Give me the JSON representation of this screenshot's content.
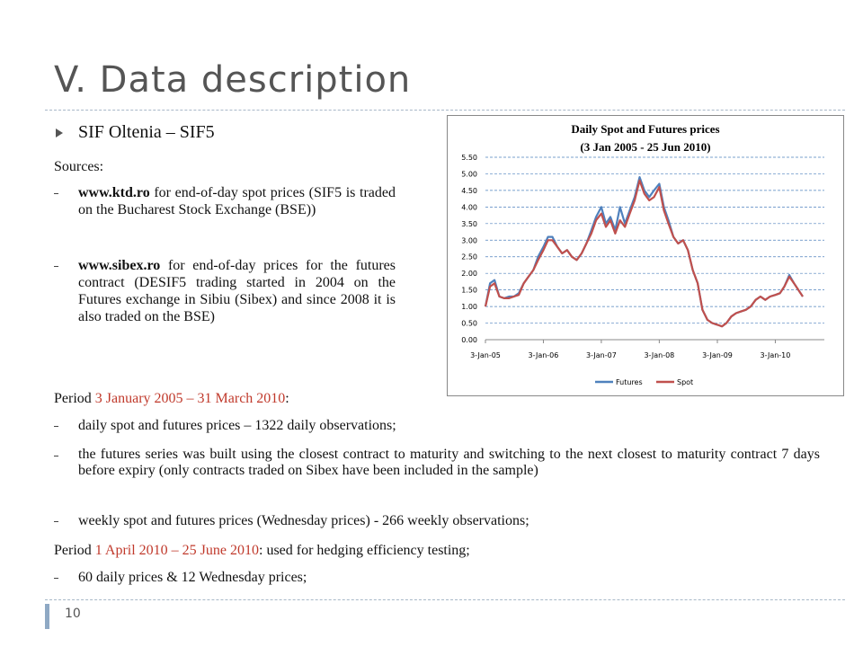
{
  "header": {
    "title": "V. Data description"
  },
  "section": {
    "heading": "SIF Oltenia – SIF5",
    "sources_label": "Sources:",
    "sources": [
      {
        "link": "www.ktd.ro",
        "text": " for end-of-day spot prices (SIF5 is traded on the Bucharest Stock Exchange (BSE))"
      },
      {
        "link": "www.sibex.ro",
        "text": " for end-of-day prices for the futures contract (DESIF5 trading started in 2004 on the Futures exchange in Sibiu (Sibex) and since 2008  it is also traded on the BSE)"
      }
    ]
  },
  "periods": [
    {
      "prefix": "Period ",
      "range": "3 January 2005 – 31 March 2010",
      "suffix": ":",
      "items": [
        "daily spot and futures prices – 1322 daily observations;",
        "the futures series was built using the closest contract to maturity and switching to the next closest to maturity contract 7 days before expiry (only contracts traded on Sibex have been included in the sample)",
        "weekly spot and futures prices (Wednesday prices) - 266 weekly observations;"
      ]
    },
    {
      "prefix": "Period ",
      "range": "1 April 2010 – 25 June 2010",
      "suffix": ": used for hedging efficiency testing;",
      "items": [
        "60 daily prices & 12 Wednesday prices;"
      ]
    }
  ],
  "footer": {
    "page": "10"
  },
  "chart_data": {
    "type": "line",
    "title": "Daily Spot and Futures prices",
    "subtitle": "(3 Jan 2005 - 25 Jun 2010)",
    "x": [
      "2005-01-03",
      "2005-02-01",
      "2005-03-01",
      "2005-04-01",
      "2005-05-01",
      "2005-06-01",
      "2005-07-01",
      "2005-08-01",
      "2005-09-01",
      "2005-10-01",
      "2005-11-01",
      "2005-12-01",
      "2006-01-03",
      "2006-02-01",
      "2006-03-01",
      "2006-04-01",
      "2006-05-01",
      "2006-06-01",
      "2006-07-01",
      "2006-08-01",
      "2006-09-01",
      "2006-10-01",
      "2006-11-01",
      "2006-12-01",
      "2007-01-03",
      "2007-02-01",
      "2007-03-01",
      "2007-04-01",
      "2007-05-01",
      "2007-06-01",
      "2007-07-01",
      "2007-08-01",
      "2007-09-01",
      "2007-10-01",
      "2007-11-01",
      "2007-12-01",
      "2008-01-03",
      "2008-02-01",
      "2008-03-01",
      "2008-04-01",
      "2008-05-01",
      "2008-06-01",
      "2008-07-01",
      "2008-08-01",
      "2008-09-01",
      "2008-10-01",
      "2008-11-01",
      "2008-12-01",
      "2009-01-03",
      "2009-02-01",
      "2009-03-01",
      "2009-04-01",
      "2009-05-01",
      "2009-06-01",
      "2009-07-01",
      "2009-08-01",
      "2009-09-01",
      "2009-10-01",
      "2009-11-01",
      "2009-12-01",
      "2010-01-03",
      "2010-02-01",
      "2010-03-01",
      "2010-04-01",
      "2010-05-01",
      "2010-06-25"
    ],
    "xlim": [
      "2005-01-03",
      "2010-06-25"
    ],
    "xticks": [
      {
        "value": "2005-01-03",
        "label": "3-Jan-05"
      },
      {
        "value": "2006-01-03",
        "label": "3-Jan-06"
      },
      {
        "value": "2007-01-03",
        "label": "3-Jan-07"
      },
      {
        "value": "2008-01-03",
        "label": "3-Jan-08"
      },
      {
        "value": "2009-01-03",
        "label": "3-Jan-09"
      },
      {
        "value": "2010-01-03",
        "label": "3-Jan-10"
      }
    ],
    "ylim": [
      0,
      5.5
    ],
    "yticks": [
      {
        "value": 0,
        "label": "0.00"
      },
      {
        "value": 0.5,
        "label": "0.50"
      },
      {
        "value": 1,
        "label": "1.00"
      },
      {
        "value": 1.5,
        "label": "1.50"
      },
      {
        "value": 2,
        "label": "2.00"
      },
      {
        "value": 2.5,
        "label": "2.50"
      },
      {
        "value": 3,
        "label": "3.00"
      },
      {
        "value": 3.5,
        "label": "3.50"
      },
      {
        "value": 4,
        "label": "4.00"
      },
      {
        "value": 4.5,
        "label": "4.50"
      },
      {
        "value": 5,
        "label": "5.00"
      },
      {
        "value": 5.5,
        "label": "5.50"
      }
    ],
    "grid": true,
    "legend": "bottom",
    "series": [
      {
        "name": "Futures",
        "color": "#4f81bd",
        "values": [
          1.0,
          1.7,
          1.8,
          1.3,
          1.25,
          1.3,
          1.3,
          1.4,
          1.7,
          1.9,
          2.1,
          2.5,
          2.8,
          3.1,
          3.1,
          2.8,
          2.6,
          2.7,
          2.5,
          2.4,
          2.6,
          2.9,
          3.3,
          3.7,
          4.0,
          3.5,
          3.7,
          3.3,
          4.0,
          3.5,
          3.9,
          4.3,
          4.9,
          4.5,
          4.3,
          4.5,
          4.7,
          4.0,
          3.6,
          3.1,
          2.9,
          3.0,
          2.7,
          2.1,
          1.7,
          0.9,
          0.6,
          0.5,
          0.45,
          0.4,
          0.5,
          0.7,
          0.8,
          0.85,
          0.9,
          1.0,
          1.2,
          1.3,
          1.2,
          1.3,
          1.35,
          1.4,
          1.6,
          1.95,
          1.7,
          1.3
        ]
      },
      {
        "name": "Spot",
        "color": "#c0504d",
        "values": [
          1.0,
          1.6,
          1.7,
          1.3,
          1.25,
          1.25,
          1.3,
          1.35,
          1.7,
          1.9,
          2.1,
          2.4,
          2.7,
          3.0,
          3.0,
          2.8,
          2.6,
          2.7,
          2.5,
          2.4,
          2.6,
          2.9,
          3.2,
          3.6,
          3.8,
          3.4,
          3.6,
          3.2,
          3.6,
          3.4,
          3.8,
          4.2,
          4.8,
          4.4,
          4.2,
          4.3,
          4.6,
          3.9,
          3.5,
          3.1,
          2.9,
          3.0,
          2.7,
          2.1,
          1.7,
          0.9,
          0.6,
          0.5,
          0.45,
          0.4,
          0.5,
          0.7,
          0.8,
          0.85,
          0.9,
          1.0,
          1.2,
          1.3,
          1.2,
          1.3,
          1.35,
          1.4,
          1.6,
          1.9,
          1.7,
          1.3
        ]
      }
    ]
  }
}
